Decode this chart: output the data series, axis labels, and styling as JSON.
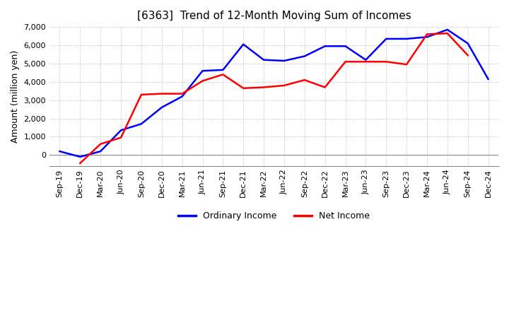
{
  "title": "[6363]  Trend of 12-Month Moving Sum of Incomes",
  "ylabel": "Amount (million yen)",
  "ylim": [
    -600,
    7000
  ],
  "yticks": [
    0,
    1000,
    2000,
    3000,
    4000,
    5000,
    6000,
    7000
  ],
  "x_labels": [
    "Sep-19",
    "Dec-19",
    "Mar-20",
    "Jun-20",
    "Sep-20",
    "Dec-20",
    "Mar-21",
    "Jun-21",
    "Sep-21",
    "Dec-21",
    "Mar-22",
    "Jun-22",
    "Sep-22",
    "Dec-22",
    "Mar-23",
    "Jun-23",
    "Sep-23",
    "Dec-23",
    "Mar-24",
    "Jun-24",
    "Sep-24",
    "Dec-24"
  ],
  "ordinary_income": [
    200,
    -100,
    200,
    1350,
    1700,
    2600,
    3200,
    4600,
    4650,
    6050,
    5200,
    5150,
    5400,
    5950,
    5950,
    5200,
    6350,
    6350,
    6450,
    6850,
    6100,
    4150
  ],
  "net_income": [
    null,
    -450,
    600,
    950,
    3300,
    3350,
    3350,
    4050,
    4400,
    3650,
    3700,
    3800,
    4100,
    3700,
    5100,
    5100,
    5100,
    4950,
    6600,
    6650,
    5450,
    null
  ],
  "ordinary_color": "#0000ff",
  "net_color": "#ff0000",
  "grid_color": "#aaaaaa",
  "grid_style": "dotted",
  "background_color": "#ffffff",
  "legend_labels": [
    "Ordinary Income",
    "Net Income"
  ],
  "line_width": 1.8,
  "title_fontsize": 11,
  "tick_fontsize": 8,
  "ylabel_fontsize": 9
}
